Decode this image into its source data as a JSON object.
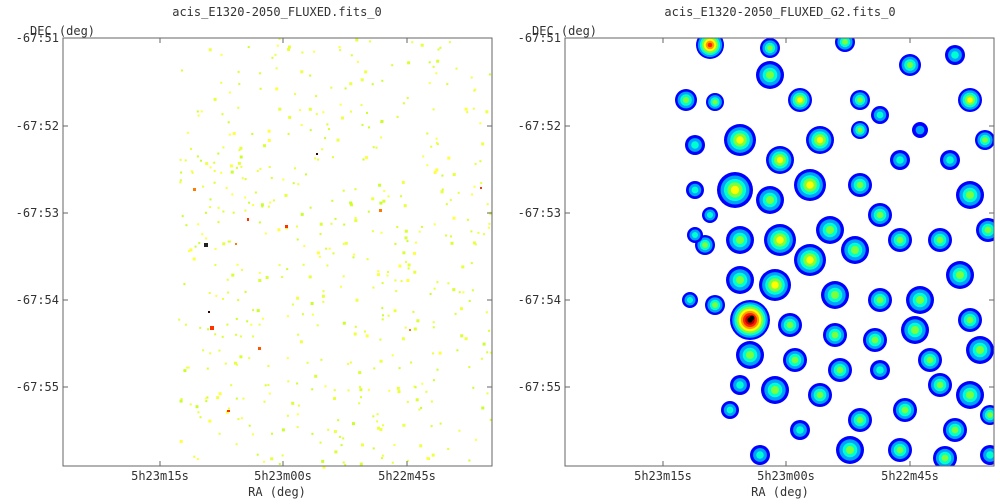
{
  "colors": {
    "frame": "#666666",
    "scale": [
      "#0000ff",
      "#00a2ff",
      "#00ffd0",
      "#7cff3c",
      "#ffff00",
      "#ff9900",
      "#ff2200",
      "#b00000",
      "#000000"
    ]
  },
  "chart_data": [
    {
      "type": "heatmap",
      "title": "acis_E1320-2050_FLUXED.fits_0",
      "xlabel": "RA (deg)",
      "ylabel": "DEC (deg)",
      "x_ticks": [
        "5h23m15s",
        "5h23m00s",
        "5h22m45s"
      ],
      "y_ticks": [
        "-67:51",
        "-67:52",
        "-67:53",
        "-67:54",
        "-67:55"
      ],
      "rendering": "sparse single-pixel counts, mostly yellow-green with a few orange/red/black bright pixels"
    },
    {
      "type": "heatmap",
      "title": "acis_E1320-2050_FLUXED_G2.fits_0",
      "xlabel": "RA (deg)",
      "ylabel": "DEC (deg)",
      "x_ticks": [
        "5h23m15s",
        "5h23m00s",
        "5h22m45s"
      ],
      "y_ticks": [
        "-67:51",
        "-67:52",
        "-67:53",
        "-67:54",
        "-67:55"
      ],
      "rendering": "Gaussian-smoothed image, blue-green-yellow blobs with a red/black peak near 5h23m03s -67:54:12"
    }
  ]
}
